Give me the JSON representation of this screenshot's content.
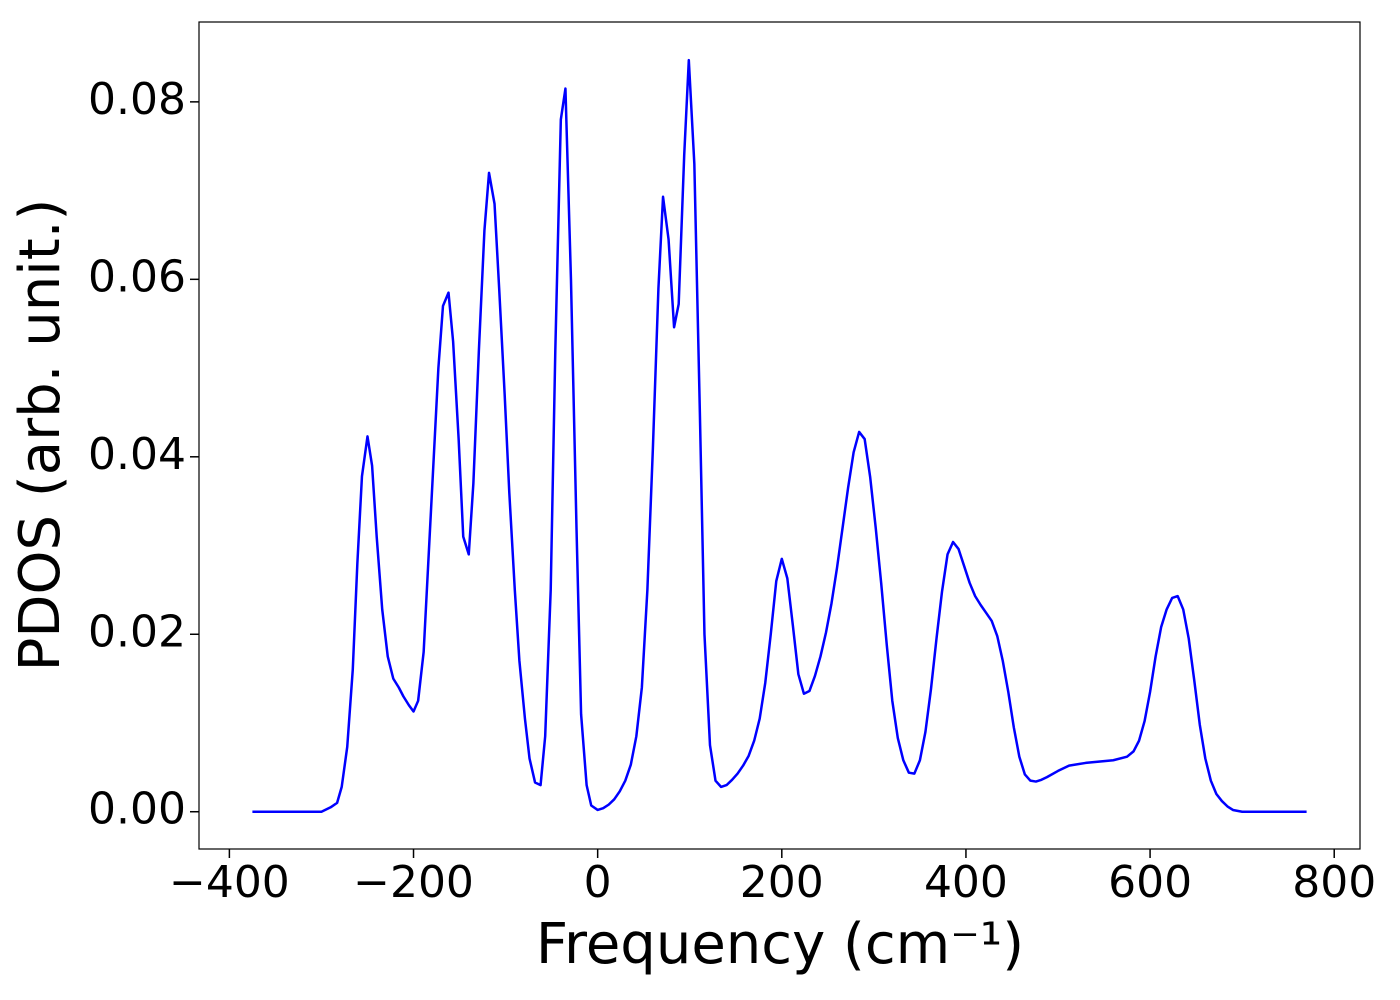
{
  "chart_data": {
    "type": "line",
    "xlabel": "Frequency (cm⁻¹)",
    "ylabel": "PDOS (arb. unit.)",
    "xlim": [
      -433,
      828
    ],
    "ylim": [
      -0.0042,
      0.089
    ],
    "xticks": [
      {
        "value": -400,
        "label": "−400"
      },
      {
        "value": -200,
        "label": "−200"
      },
      0,
      200,
      400,
      600,
      800
    ],
    "yticks": [
      {
        "value": 0,
        "label": "0.00"
      },
      0.02,
      0.04,
      0.06,
      0.08
    ],
    "series": [
      {
        "color": "#0000ff",
        "x": [
          -375,
          -300,
          -290,
          -283,
          -278,
          -272,
          -266,
          -261,
          -256,
          -250,
          -245,
          -240,
          -234,
          -228,
          -222,
          -216,
          -211,
          -205,
          -200,
          -195,
          -189,
          -184,
          -178,
          -173,
          -168,
          -162,
          -157,
          -151,
          -146,
          -140,
          -135,
          -129,
          -123,
          -118,
          -112,
          -107,
          -101,
          -96,
          -90,
          -85,
          -79,
          -74,
          -68,
          -62,
          -57,
          -51,
          -46,
          -40,
          -35,
          -29,
          -23,
          -18,
          -12,
          -7,
          0,
          6,
          12,
          18,
          24,
          30,
          36,
          42,
          48,
          54,
          60,
          66,
          71,
          77,
          83,
          88,
          94,
          99,
          105,
          111,
          116,
          122,
          128,
          134,
          140,
          146,
          152,
          158,
          164,
          170,
          176,
          182,
          188,
          194,
          200,
          206,
          212,
          218,
          224,
          230,
          236,
          242,
          248,
          254,
          260,
          266,
          272,
          278,
          284,
          290,
          296,
          302,
          308,
          314,
          320,
          326,
          332,
          338,
          344,
          350,
          356,
          362,
          368,
          374,
          380,
          386,
          392,
          398,
          404,
          410,
          416,
          422,
          428,
          434,
          440,
          446,
          452,
          458,
          464,
          470,
          476,
          482,
          488,
          500,
          512,
          530,
          560,
          575,
          582,
          588,
          594,
          600,
          606,
          612,
          618,
          624,
          630,
          636,
          642,
          648,
          654,
          660,
          666,
          672,
          678,
          684,
          690,
          700,
          770
        ],
        "values": [
          0,
          0,
          0.0005,
          0.001,
          0.0028,
          0.0073,
          0.016,
          0.028,
          0.0378,
          0.0423,
          0.039,
          0.031,
          0.0228,
          0.0175,
          0.015,
          0.014,
          0.013,
          0.012,
          0.0113,
          0.0125,
          0.018,
          0.028,
          0.04,
          0.05,
          0.057,
          0.0585,
          0.053,
          0.042,
          0.031,
          0.029,
          0.037,
          0.052,
          0.0655,
          0.072,
          0.0685,
          0.059,
          0.047,
          0.036,
          0.025,
          0.017,
          0.0105,
          0.006,
          0.0033,
          0.003,
          0.0085,
          0.025,
          0.052,
          0.078,
          0.0815,
          0.06,
          0.032,
          0.011,
          0.003,
          0.0007,
          0.0002,
          0.0004,
          0.0008,
          0.0014,
          0.0023,
          0.0035,
          0.0053,
          0.0085,
          0.014,
          0.025,
          0.041,
          0.059,
          0.0693,
          0.0645,
          0.0546,
          0.0572,
          0.074,
          0.0847,
          0.073,
          0.045,
          0.02,
          0.0075,
          0.0035,
          0.0028,
          0.003,
          0.0036,
          0.0043,
          0.0052,
          0.0063,
          0.008,
          0.0105,
          0.0145,
          0.02,
          0.026,
          0.0285,
          0.0263,
          0.021,
          0.0155,
          0.0133,
          0.0136,
          0.0153,
          0.0175,
          0.0202,
          0.0235,
          0.0275,
          0.032,
          0.0365,
          0.0405,
          0.0428,
          0.042,
          0.0377,
          0.032,
          0.0257,
          0.0188,
          0.0125,
          0.0083,
          0.0058,
          0.0044,
          0.0043,
          0.0058,
          0.009,
          0.0138,
          0.0195,
          0.0248,
          0.029,
          0.0304,
          0.0296,
          0.0277,
          0.0258,
          0.0243,
          0.0233,
          0.0224,
          0.0215,
          0.0198,
          0.017,
          0.0135,
          0.0095,
          0.0062,
          0.0042,
          0.0035,
          0.0034,
          0.0036,
          0.0039,
          0.0046,
          0.0052,
          0.0055,
          0.0058,
          0.0062,
          0.0068,
          0.008,
          0.0102,
          0.0135,
          0.0175,
          0.0208,
          0.0228,
          0.0241,
          0.0243,
          0.0228,
          0.0195,
          0.0148,
          0.0098,
          0.006,
          0.0035,
          0.002,
          0.0012,
          0.0006,
          0.0002,
          0,
          0
        ]
      }
    ]
  }
}
